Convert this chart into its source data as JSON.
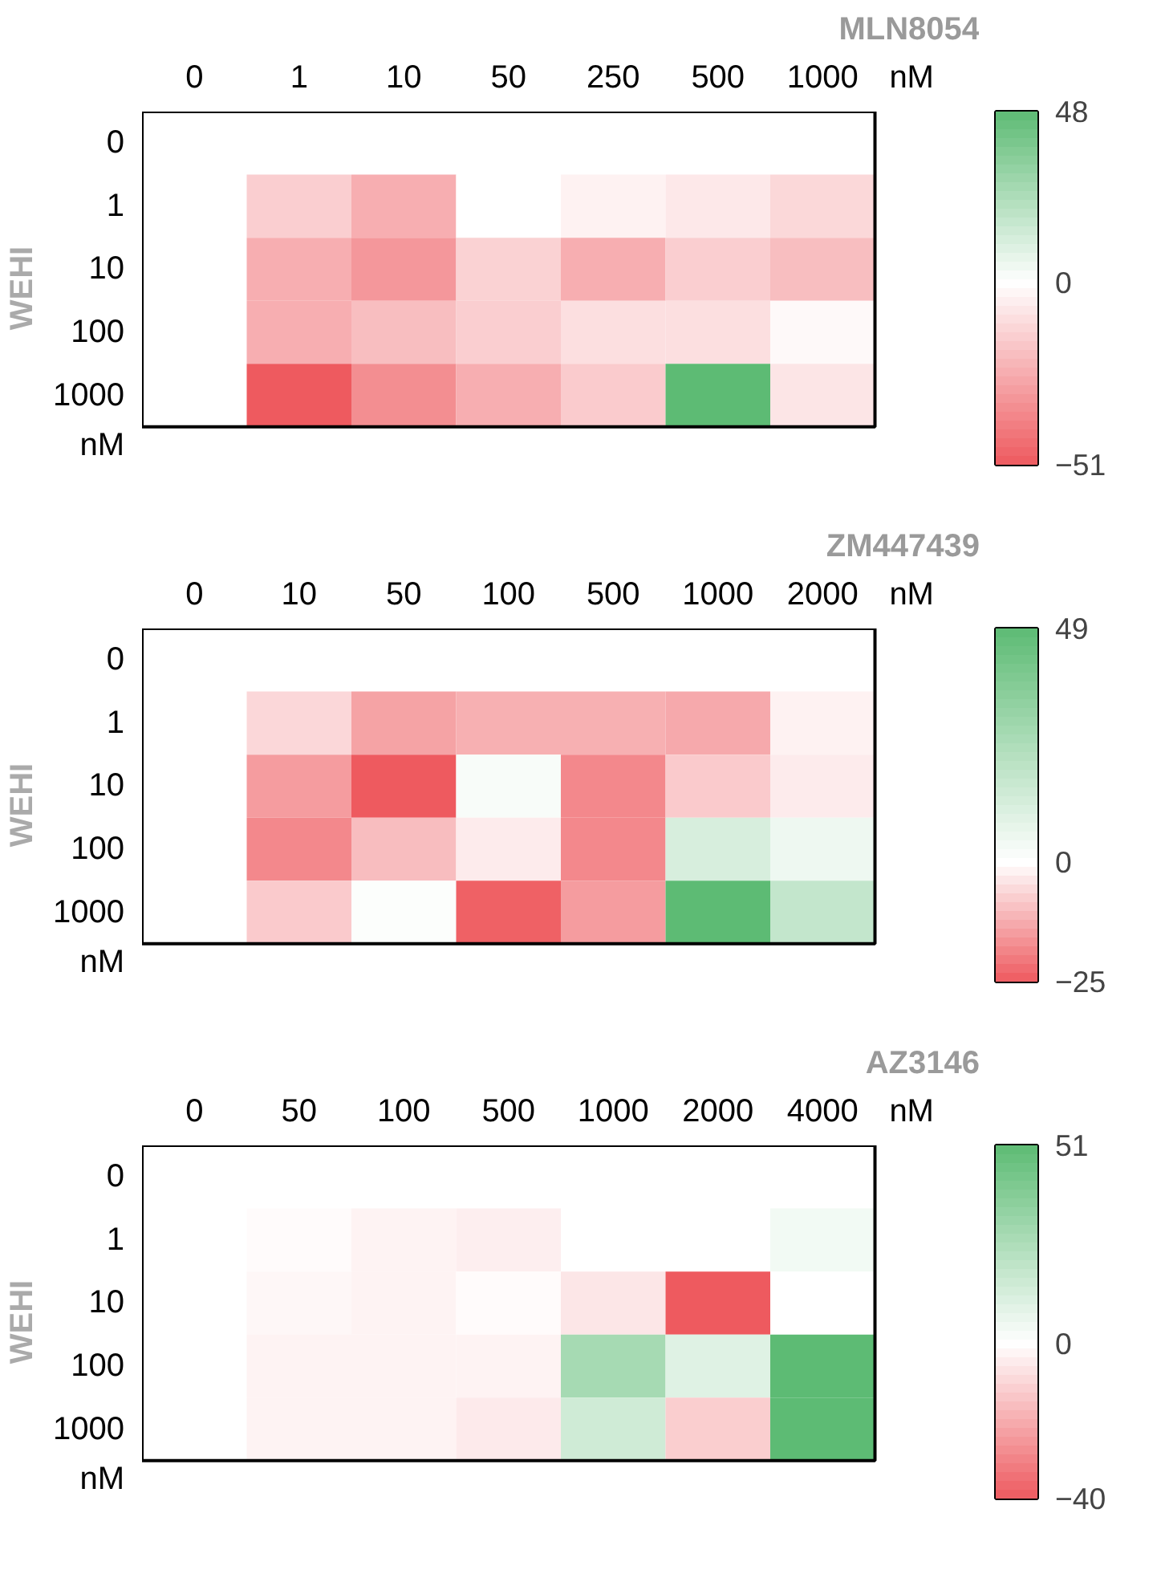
{
  "chart_data": [
    {
      "type": "heatmap",
      "title": "MLN8054",
      "xlabel": "nM",
      "ylabel": "WEHI",
      "annotations": [
        "nM"
      ],
      "categories": [
        "0",
        "1",
        "10",
        "50",
        "250",
        "500",
        "1000"
      ],
      "y_categories": [
        "0",
        "1",
        "10",
        "100",
        "1000"
      ],
      "cells": [
        [
          0,
          0,
          0,
          0,
          0,
          0,
          0
        ],
        [
          0,
          -15,
          -25,
          0,
          -4,
          -7,
          -12
        ],
        [
          0,
          -25,
          -32,
          -14,
          -25,
          -15,
          -20
        ],
        [
          0,
          -25,
          -20,
          -15,
          -10,
          -10,
          -2
        ],
        [
          0,
          -51,
          -35,
          -25,
          -16,
          48,
          -8
        ]
      ],
      "clim": [
        -51,
        48
      ],
      "cticks": [
        48,
        0,
        -51
      ]
    },
    {
      "type": "heatmap",
      "title": "ZM447439",
      "xlabel": "nM",
      "ylabel": "WEHI",
      "annotations": [
        "nM"
      ],
      "categories": [
        "0",
        "10",
        "50",
        "100",
        "500",
        "1000",
        "2000"
      ],
      "y_categories": [
        "0",
        "1",
        "10",
        "100",
        "1000"
      ],
      "cells": [
        [
          0,
          0,
          0,
          0,
          0,
          0,
          0
        ],
        [
          0,
          -6,
          -14,
          -12,
          -12,
          -13,
          -2
        ],
        [
          0,
          -15,
          -25,
          2,
          -18,
          -8,
          -3
        ],
        [
          0,
          -18,
          -10,
          -3,
          -18,
          12,
          5
        ],
        [
          0,
          -8,
          1,
          -24,
          -15,
          49,
          18
        ]
      ],
      "clim": [
        -25,
        49
      ],
      "cticks": [
        49,
        0,
        -25
      ]
    },
    {
      "type": "heatmap",
      "title": "AZ3146",
      "xlabel": "nM",
      "ylabel": "WEHI",
      "annotations": [
        "nM"
      ],
      "categories": [
        "0",
        "50",
        "100",
        "500",
        "1000",
        "2000",
        "4000"
      ],
      "y_categories": [
        "0",
        "1",
        "10",
        "100",
        "1000"
      ],
      "cells": [
        [
          0,
          0,
          0,
          0,
          0,
          0,
          0
        ],
        [
          0,
          -1,
          -3,
          -4,
          0,
          0,
          4
        ],
        [
          0,
          -2,
          -3,
          -1,
          -6,
          -40,
          0
        ],
        [
          0,
          -3,
          -3,
          -3,
          28,
          10,
          51
        ],
        [
          0,
          -3,
          -3,
          -5,
          15,
          -12,
          51
        ]
      ],
      "clim": [
        -40,
        51
      ],
      "cticks": [
        51,
        0,
        -40
      ]
    }
  ]
}
